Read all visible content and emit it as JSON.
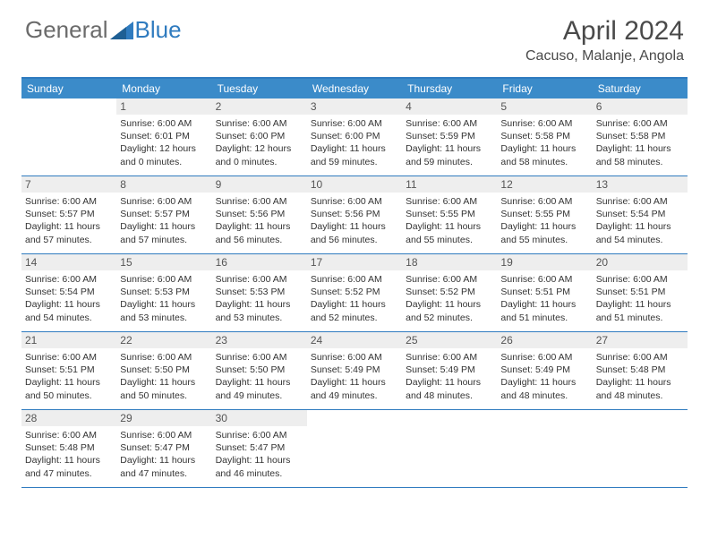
{
  "logo": {
    "text_gray": "General",
    "text_blue": "Blue"
  },
  "title": "April 2024",
  "location": "Cacuso, Malanje, Angola",
  "colors": {
    "header_band": "#3b8bc9",
    "border": "#2f7bbf",
    "daynum_bg": "#eeeeee",
    "text_gray": "#6b6b6b",
    "text_dark": "#4a4a4a"
  },
  "days_of_week": [
    "Sunday",
    "Monday",
    "Tuesday",
    "Wednesday",
    "Thursday",
    "Friday",
    "Saturday"
  ],
  "cells": [
    {
      "n": "",
      "t": ""
    },
    {
      "n": "1",
      "t": "Sunrise: 6:00 AM\nSunset: 6:01 PM\nDaylight: 12 hours and 0 minutes."
    },
    {
      "n": "2",
      "t": "Sunrise: 6:00 AM\nSunset: 6:00 PM\nDaylight: 12 hours and 0 minutes."
    },
    {
      "n": "3",
      "t": "Sunrise: 6:00 AM\nSunset: 6:00 PM\nDaylight: 11 hours and 59 minutes."
    },
    {
      "n": "4",
      "t": "Sunrise: 6:00 AM\nSunset: 5:59 PM\nDaylight: 11 hours and 59 minutes."
    },
    {
      "n": "5",
      "t": "Sunrise: 6:00 AM\nSunset: 5:58 PM\nDaylight: 11 hours and 58 minutes."
    },
    {
      "n": "6",
      "t": "Sunrise: 6:00 AM\nSunset: 5:58 PM\nDaylight: 11 hours and 58 minutes."
    },
    {
      "n": "7",
      "t": "Sunrise: 6:00 AM\nSunset: 5:57 PM\nDaylight: 11 hours and 57 minutes."
    },
    {
      "n": "8",
      "t": "Sunrise: 6:00 AM\nSunset: 5:57 PM\nDaylight: 11 hours and 57 minutes."
    },
    {
      "n": "9",
      "t": "Sunrise: 6:00 AM\nSunset: 5:56 PM\nDaylight: 11 hours and 56 minutes."
    },
    {
      "n": "10",
      "t": "Sunrise: 6:00 AM\nSunset: 5:56 PM\nDaylight: 11 hours and 56 minutes."
    },
    {
      "n": "11",
      "t": "Sunrise: 6:00 AM\nSunset: 5:55 PM\nDaylight: 11 hours and 55 minutes."
    },
    {
      "n": "12",
      "t": "Sunrise: 6:00 AM\nSunset: 5:55 PM\nDaylight: 11 hours and 55 minutes."
    },
    {
      "n": "13",
      "t": "Sunrise: 6:00 AM\nSunset: 5:54 PM\nDaylight: 11 hours and 54 minutes."
    },
    {
      "n": "14",
      "t": "Sunrise: 6:00 AM\nSunset: 5:54 PM\nDaylight: 11 hours and 54 minutes."
    },
    {
      "n": "15",
      "t": "Sunrise: 6:00 AM\nSunset: 5:53 PM\nDaylight: 11 hours and 53 minutes."
    },
    {
      "n": "16",
      "t": "Sunrise: 6:00 AM\nSunset: 5:53 PM\nDaylight: 11 hours and 53 minutes."
    },
    {
      "n": "17",
      "t": "Sunrise: 6:00 AM\nSunset: 5:52 PM\nDaylight: 11 hours and 52 minutes."
    },
    {
      "n": "18",
      "t": "Sunrise: 6:00 AM\nSunset: 5:52 PM\nDaylight: 11 hours and 52 minutes."
    },
    {
      "n": "19",
      "t": "Sunrise: 6:00 AM\nSunset: 5:51 PM\nDaylight: 11 hours and 51 minutes."
    },
    {
      "n": "20",
      "t": "Sunrise: 6:00 AM\nSunset: 5:51 PM\nDaylight: 11 hours and 51 minutes."
    },
    {
      "n": "21",
      "t": "Sunrise: 6:00 AM\nSunset: 5:51 PM\nDaylight: 11 hours and 50 minutes."
    },
    {
      "n": "22",
      "t": "Sunrise: 6:00 AM\nSunset: 5:50 PM\nDaylight: 11 hours and 50 minutes."
    },
    {
      "n": "23",
      "t": "Sunrise: 6:00 AM\nSunset: 5:50 PM\nDaylight: 11 hours and 49 minutes."
    },
    {
      "n": "24",
      "t": "Sunrise: 6:00 AM\nSunset: 5:49 PM\nDaylight: 11 hours and 49 minutes."
    },
    {
      "n": "25",
      "t": "Sunrise: 6:00 AM\nSunset: 5:49 PM\nDaylight: 11 hours and 48 minutes."
    },
    {
      "n": "26",
      "t": "Sunrise: 6:00 AM\nSunset: 5:49 PM\nDaylight: 11 hours and 48 minutes."
    },
    {
      "n": "27",
      "t": "Sunrise: 6:00 AM\nSunset: 5:48 PM\nDaylight: 11 hours and 48 minutes."
    },
    {
      "n": "28",
      "t": "Sunrise: 6:00 AM\nSunset: 5:48 PM\nDaylight: 11 hours and 47 minutes."
    },
    {
      "n": "29",
      "t": "Sunrise: 6:00 AM\nSunset: 5:47 PM\nDaylight: 11 hours and 47 minutes."
    },
    {
      "n": "30",
      "t": "Sunrise: 6:00 AM\nSunset: 5:47 PM\nDaylight: 11 hours and 46 minutes."
    },
    {
      "n": "",
      "t": ""
    },
    {
      "n": "",
      "t": ""
    },
    {
      "n": "",
      "t": ""
    },
    {
      "n": "",
      "t": ""
    }
  ]
}
